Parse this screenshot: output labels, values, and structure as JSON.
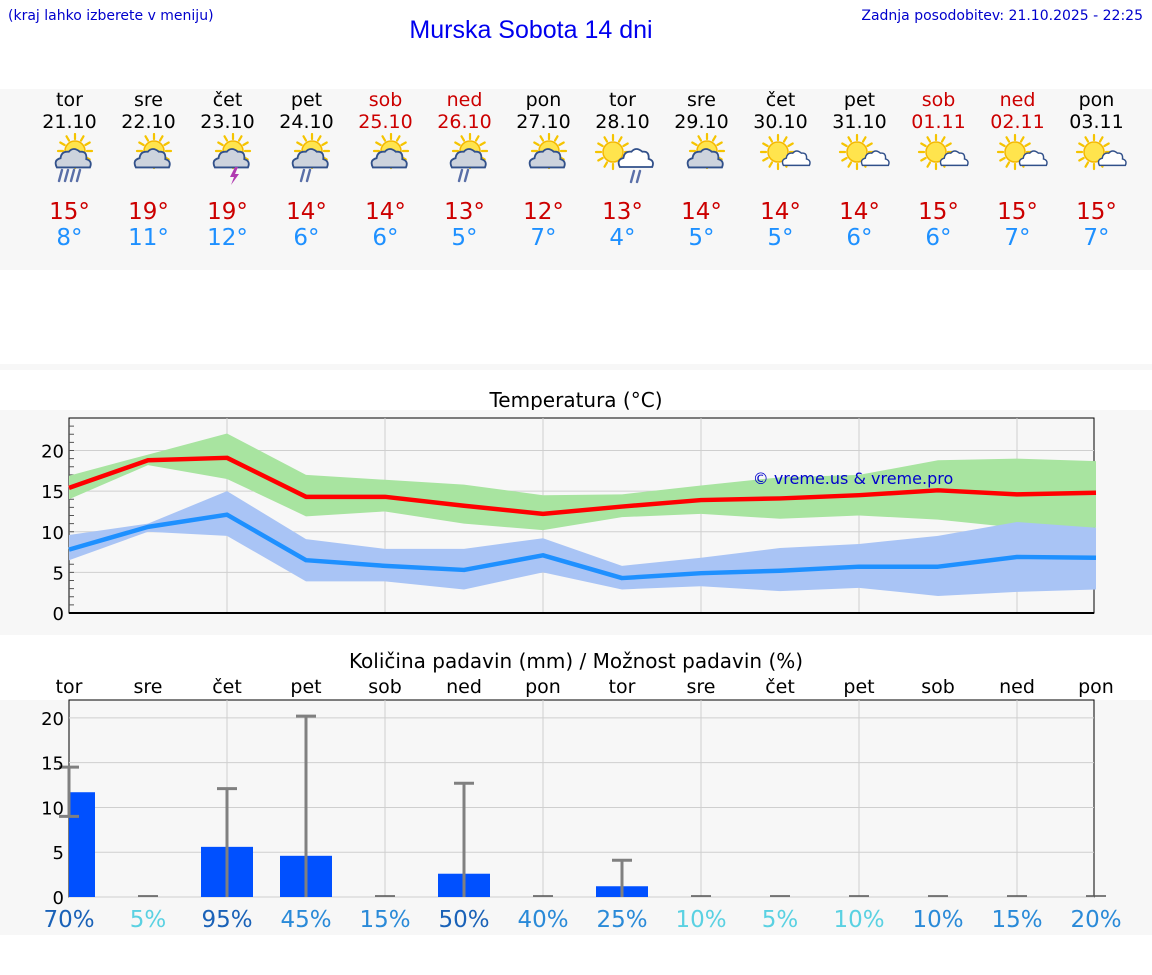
{
  "header": {
    "note": "(kraj lahko izberete v meniju)",
    "title": "Murska Sobota 14 dni",
    "updated": "Zadnja posodobitev: 21.10.2025 - 22:25"
  },
  "colors": {
    "title": "#0000ee",
    "weekend": "#cc0000",
    "max_temp": "#cc0000",
    "min_temp": "#1e90ff",
    "max_line": "#ff0000",
    "max_band": "#a8e4a0",
    "min_line": "#1e90ff",
    "min_band": "#a9c4f5",
    "bar": "#0050ff",
    "error_bar": "#808080"
  },
  "days": [
    {
      "name": "tor",
      "date": "21.10",
      "weekend": false,
      "icon": "sun-cloud-rain-icon",
      "tmax": "15°",
      "tmin": "8°"
    },
    {
      "name": "sre",
      "date": "22.10",
      "weekend": false,
      "icon": "sun-cloud-icon",
      "tmax": "19°",
      "tmin": "11°"
    },
    {
      "name": "čet",
      "date": "23.10",
      "weekend": false,
      "icon": "sun-thunderstorm-icon",
      "tmax": "19°",
      "tmin": "12°"
    },
    {
      "name": "pet",
      "date": "24.10",
      "weekend": false,
      "icon": "sun-cloud-light-rain-icon",
      "tmax": "14°",
      "tmin": "6°"
    },
    {
      "name": "sob",
      "date": "25.10",
      "weekend": true,
      "icon": "sun-cloud-icon",
      "tmax": "14°",
      "tmin": "6°"
    },
    {
      "name": "ned",
      "date": "26.10",
      "weekend": true,
      "icon": "sun-cloud-light-rain-icon",
      "tmax": "13°",
      "tmin": "5°"
    },
    {
      "name": "pon",
      "date": "27.10",
      "weekend": false,
      "icon": "sun-cloud-icon",
      "tmax": "12°",
      "tmin": "7°"
    },
    {
      "name": "tor",
      "date": "28.10",
      "weekend": false,
      "icon": "sun-white-cloud-rain-icon",
      "tmax": "13°",
      "tmin": "4°"
    },
    {
      "name": "sre",
      "date": "29.10",
      "weekend": false,
      "icon": "sun-cloud-icon",
      "tmax": "14°",
      "tmin": "5°"
    },
    {
      "name": "čet",
      "date": "30.10",
      "weekend": false,
      "icon": "sun-small-cloud-icon",
      "tmax": "14°",
      "tmin": "5°"
    },
    {
      "name": "pet",
      "date": "31.10",
      "weekend": false,
      "icon": "sun-small-cloud-icon",
      "tmax": "14°",
      "tmin": "6°"
    },
    {
      "name": "sob",
      "date": "01.11",
      "weekend": true,
      "icon": "sun-small-cloud-icon",
      "tmax": "15°",
      "tmin": "6°"
    },
    {
      "name": "ned",
      "date": "02.11",
      "weekend": true,
      "icon": "sun-small-cloud-icon",
      "tmax": "15°",
      "tmin": "7°"
    },
    {
      "name": "pon",
      "date": "03.11",
      "weekend": false,
      "icon": "sun-small-cloud-icon",
      "tmax": "15°",
      "tmin": "7°"
    }
  ],
  "chart_data": [
    {
      "type": "line",
      "title": "Temperatura (°C)",
      "watermark": "© vreme.us & vreme.pro",
      "ylim": [
        0,
        24
      ],
      "yticks": [
        "0",
        "5",
        "10",
        "15",
        "20"
      ],
      "grid": true,
      "x": [
        0,
        1,
        2,
        3,
        4,
        5,
        6,
        7,
        8,
        9,
        10,
        11,
        12,
        13
      ],
      "series": [
        {
          "role": "max",
          "values": [
            15.4,
            18.8,
            19.1,
            14.3,
            14.3,
            13.2,
            12.2,
            13.1,
            13.9,
            14.1,
            14.5,
            15.1,
            14.6,
            14.8
          ],
          "band_low": [
            14.0,
            18.2,
            16.5,
            11.9,
            12.5,
            11.0,
            10.2,
            11.8,
            12.2,
            11.6,
            12.0,
            11.5,
            10.5,
            10.5
          ],
          "band_high": [
            16.9,
            19.5,
            22.1,
            17.0,
            16.4,
            15.8,
            14.5,
            14.6,
            15.7,
            16.7,
            17.0,
            18.8,
            19.0,
            18.7
          ]
        },
        {
          "role": "min",
          "values": [
            7.8,
            10.6,
            12.1,
            6.5,
            5.8,
            5.3,
            7.1,
            4.3,
            4.9,
            5.2,
            5.7,
            5.7,
            6.9,
            6.8
          ],
          "band_low": [
            6.5,
            10.0,
            9.5,
            3.9,
            3.9,
            2.9,
            5.0,
            2.9,
            3.3,
            2.7,
            3.1,
            2.1,
            2.6,
            2.9
          ],
          "band_high": [
            9.6,
            11.0,
            15.0,
            9.1,
            7.9,
            7.9,
            9.2,
            5.8,
            6.8,
            8.0,
            8.5,
            9.5,
            11.2,
            10.5
          ]
        }
      ]
    },
    {
      "type": "bar",
      "title": "Količina padavin (mm) / Možnost padavin (%)",
      "categories": [
        "tor",
        "sre",
        "čet",
        "pet",
        "sob",
        "ned",
        "pon",
        "tor",
        "sre",
        "čet",
        "pet",
        "sob",
        "ned",
        "pon"
      ],
      "ylim": [
        0,
        22
      ],
      "yticks": [
        "0",
        "5",
        "10",
        "15",
        "20"
      ],
      "grid": true,
      "values": [
        11.7,
        0,
        5.6,
        4.6,
        0,
        2.6,
        0,
        1.2,
        0,
        0,
        0,
        0,
        0,
        0
      ],
      "error_high": [
        14.5,
        0,
        12.1,
        20.2,
        0,
        12.7,
        0,
        4.1,
        0,
        0,
        0,
        0,
        0,
        0
      ],
      "error_low": [
        9.0,
        0,
        0,
        0,
        0,
        0,
        0,
        0,
        0,
        0,
        0,
        0,
        0,
        0
      ],
      "probability": [
        {
          "label": "70%",
          "color": "#1a62b8"
        },
        {
          "label": "5%",
          "color": "#5ad1e2"
        },
        {
          "label": "95%",
          "color": "#1a62b8"
        },
        {
          "label": "45%",
          "color": "#2a8ad8"
        },
        {
          "label": "15%",
          "color": "#2a8ad8"
        },
        {
          "label": "50%",
          "color": "#1a62b8"
        },
        {
          "label": "40%",
          "color": "#2a8ad8"
        },
        {
          "label": "25%",
          "color": "#2a8ad8"
        },
        {
          "label": "10%",
          "color": "#5ad1e2"
        },
        {
          "label": "5%",
          "color": "#5ad1e2"
        },
        {
          "label": "10%",
          "color": "#5ad1e2"
        },
        {
          "label": "10%",
          "color": "#2a8ad8"
        },
        {
          "label": "15%",
          "color": "#2a8ad8"
        },
        {
          "label": "20%",
          "color": "#2a8ad8"
        }
      ]
    }
  ]
}
